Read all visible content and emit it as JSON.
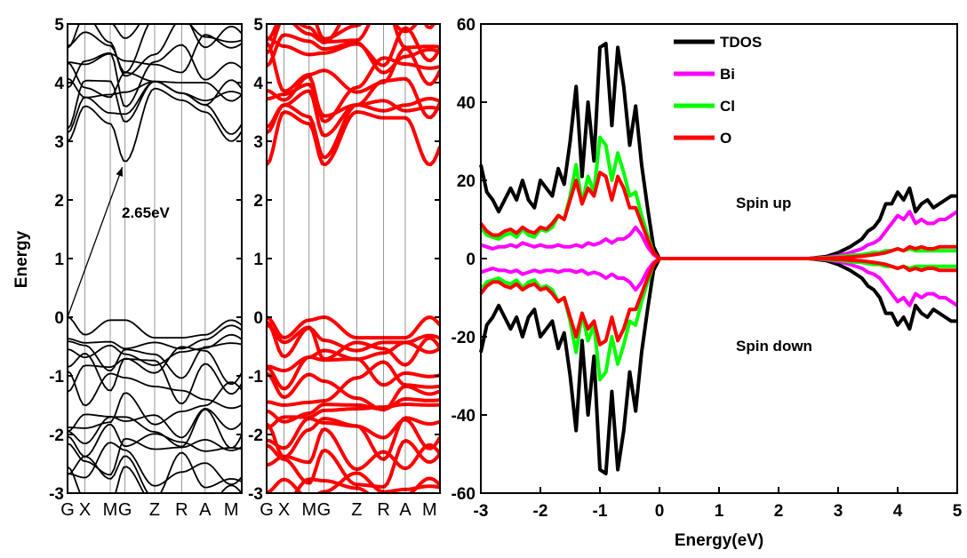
{
  "chart_data": [
    {
      "type": "line",
      "panel": "band structure (left)",
      "ylabel": "Energy",
      "ylim": [
        -3,
        5
      ],
      "y_ticks": [
        "-3",
        "-2",
        "-1",
        "0",
        "1",
        "2",
        "3",
        "4",
        "5"
      ],
      "k_path": [
        "G",
        "X",
        "M",
        "G",
        "Z",
        "R",
        "A",
        "M"
      ],
      "line_color": "#000000",
      "band_gap": {
        "label": "2.65eV",
        "vbm": 0.0,
        "cbm": 2.65,
        "vbm_k": "G",
        "cbm_k": "G"
      },
      "conduction_band_minimum": [
        {
          "k": "G",
          "energy": 3.0
        },
        {
          "k": "X",
          "energy": 3.6
        },
        {
          "k": "M",
          "energy": 3.3
        },
        {
          "k": "G",
          "energy": 2.65
        },
        {
          "k": "Z",
          "energy": 3.9
        },
        {
          "k": "R",
          "energy": 3.7
        },
        {
          "k": "A",
          "energy": 3.5
        },
        {
          "k": "M",
          "energy": 3.0
        }
      ],
      "valence_band_maximum": [
        {
          "k": "G",
          "energy": 0.0
        },
        {
          "k": "X",
          "energy": -0.3
        },
        {
          "k": "M",
          "energy": -0.05
        },
        {
          "k": "G",
          "energy": -0.05
        },
        {
          "k": "Z",
          "energy": -0.35
        },
        {
          "k": "R",
          "energy": -0.35
        },
        {
          "k": "A",
          "energy": -0.3
        },
        {
          "k": "M",
          "energy": -0.05
        }
      ]
    },
    {
      "type": "line",
      "panel": "band structure (middle)",
      "ylim": [
        -3,
        5
      ],
      "y_ticks": [
        "-3",
        "-2",
        "-1",
        "0",
        "1",
        "2",
        "3",
        "4",
        "5"
      ],
      "k_path": [
        "G",
        "X",
        "M",
        "G",
        "Z",
        "R",
        "A",
        "M"
      ],
      "line_color": "#ff0000",
      "conduction_band_minimum": [
        {
          "k": "G",
          "energy": 2.6
        },
        {
          "k": "X",
          "energy": 3.5
        },
        {
          "k": "M",
          "energy": 3.3
        },
        {
          "k": "G",
          "energy": 2.6
        },
        {
          "k": "Z",
          "energy": 3.5
        },
        {
          "k": "R",
          "energy": 3.4
        },
        {
          "k": "A",
          "energy": 3.4
        },
        {
          "k": "M",
          "energy": 2.6
        }
      ],
      "valence_band_maximum": [
        {
          "k": "G",
          "energy": 0.0
        },
        {
          "k": "X",
          "energy": -0.35
        },
        {
          "k": "M",
          "energy": -0.05
        },
        {
          "k": "G",
          "energy": 0.0
        },
        {
          "k": "Z",
          "energy": -0.35
        },
        {
          "k": "R",
          "energy": -0.35
        },
        {
          "k": "A",
          "energy": -0.35
        },
        {
          "k": "M",
          "energy": 0.0
        }
      ]
    },
    {
      "type": "line",
      "panel": "density of states (right)",
      "xlabel": "Energy(eV)",
      "xlim": [
        -3,
        5
      ],
      "ylim": [
        -60,
        60
      ],
      "x_ticks": [
        "-3",
        "-2",
        "-1",
        "0",
        "1",
        "2",
        "3",
        "4",
        "5"
      ],
      "y_ticks": [
        "-60",
        "-40",
        "-20",
        "0",
        "20",
        "40",
        "60"
      ],
      "legend": {
        "position": "top-right"
      },
      "annotations": [
        "Spin up",
        "Spin down"
      ],
      "x": [
        -3.0,
        -2.9,
        -2.8,
        -2.7,
        -2.6,
        -2.5,
        -2.4,
        -2.3,
        -2.2,
        -2.1,
        -2.0,
        -1.9,
        -1.8,
        -1.7,
        -1.6,
        -1.5,
        -1.4,
        -1.3,
        -1.2,
        -1.1,
        -1.0,
        -0.9,
        -0.8,
        -0.7,
        -0.6,
        -0.5,
        -0.4,
        -0.3,
        -0.2,
        -0.1,
        0.0,
        2.5,
        2.8,
        3.0,
        3.2,
        3.4,
        3.5,
        3.6,
        3.7,
        3.8,
        3.9,
        4.0,
        4.1,
        4.2,
        4.3,
        4.4,
        4.5,
        4.6,
        4.7,
        4.8,
        4.9,
        5.0
      ],
      "series": [
        {
          "name": "TDOS",
          "color": "#000000",
          "values": [
            24,
            17,
            15,
            12,
            15,
            18,
            15,
            20,
            15,
            13,
            20,
            18,
            16,
            23,
            19,
            30,
            44,
            21,
            40,
            25,
            54,
            55,
            34,
            54,
            44,
            29,
            39,
            24,
            13,
            3,
            0,
            0,
            0.5,
            1.5,
            3,
            5,
            7,
            8,
            10,
            14,
            14,
            17,
            15,
            18,
            12,
            14,
            15,
            13,
            14,
            15,
            16,
            16
          ]
        },
        {
          "name": "Bi",
          "color": "#ff00ff",
          "values": [
            3.5,
            3,
            2.5,
            3,
            3,
            3.5,
            3,
            4,
            3.5,
            3,
            3.5,
            3,
            3,
            3.5,
            3,
            3,
            3.5,
            3,
            4,
            3.5,
            4,
            5,
            4,
            5,
            5,
            6,
            8,
            6,
            3,
            1,
            0,
            0,
            0.3,
            0.7,
            1.5,
            2.5,
            3.5,
            4,
            5,
            7,
            9,
            11,
            10,
            12,
            9,
            10,
            9,
            9,
            10,
            10,
            11,
            12
          ]
        },
        {
          "name": "Cl",
          "color": "#00ff00",
          "values": [
            8,
            6,
            5.5,
            5,
            6,
            6.5,
            5.5,
            7.5,
            6,
            5.5,
            7.5,
            7,
            8,
            11,
            10,
            16,
            24,
            14,
            21,
            17,
            31,
            29,
            20,
            27,
            22,
            16,
            17,
            11,
            6,
            1.5,
            0,
            0,
            0.2,
            0.4,
            0.8,
            1,
            1.3,
            1.5,
            1.5,
            2,
            2,
            2.5,
            2,
            2.5,
            2,
            2,
            2,
            2,
            2,
            2,
            2,
            2
          ]
        },
        {
          "name": "O",
          "color": "#ff0000",
          "values": [
            9,
            7,
            6,
            6,
            7,
            7.5,
            6.5,
            8,
            7,
            6.5,
            8,
            7.5,
            9,
            11,
            10,
            15,
            20,
            14,
            18,
            16,
            22,
            21,
            15,
            21,
            18,
            13,
            13,
            9,
            5,
            1.5,
            0,
            0,
            0.1,
            0.2,
            0.4,
            0.6,
            0.8,
            1,
            1.2,
            1.5,
            2,
            2.5,
            2,
            3,
            2.5,
            3,
            2.5,
            2.5,
            3,
            3,
            3,
            3
          ]
        }
      ],
      "symmetric_spin_down": true
    }
  ]
}
